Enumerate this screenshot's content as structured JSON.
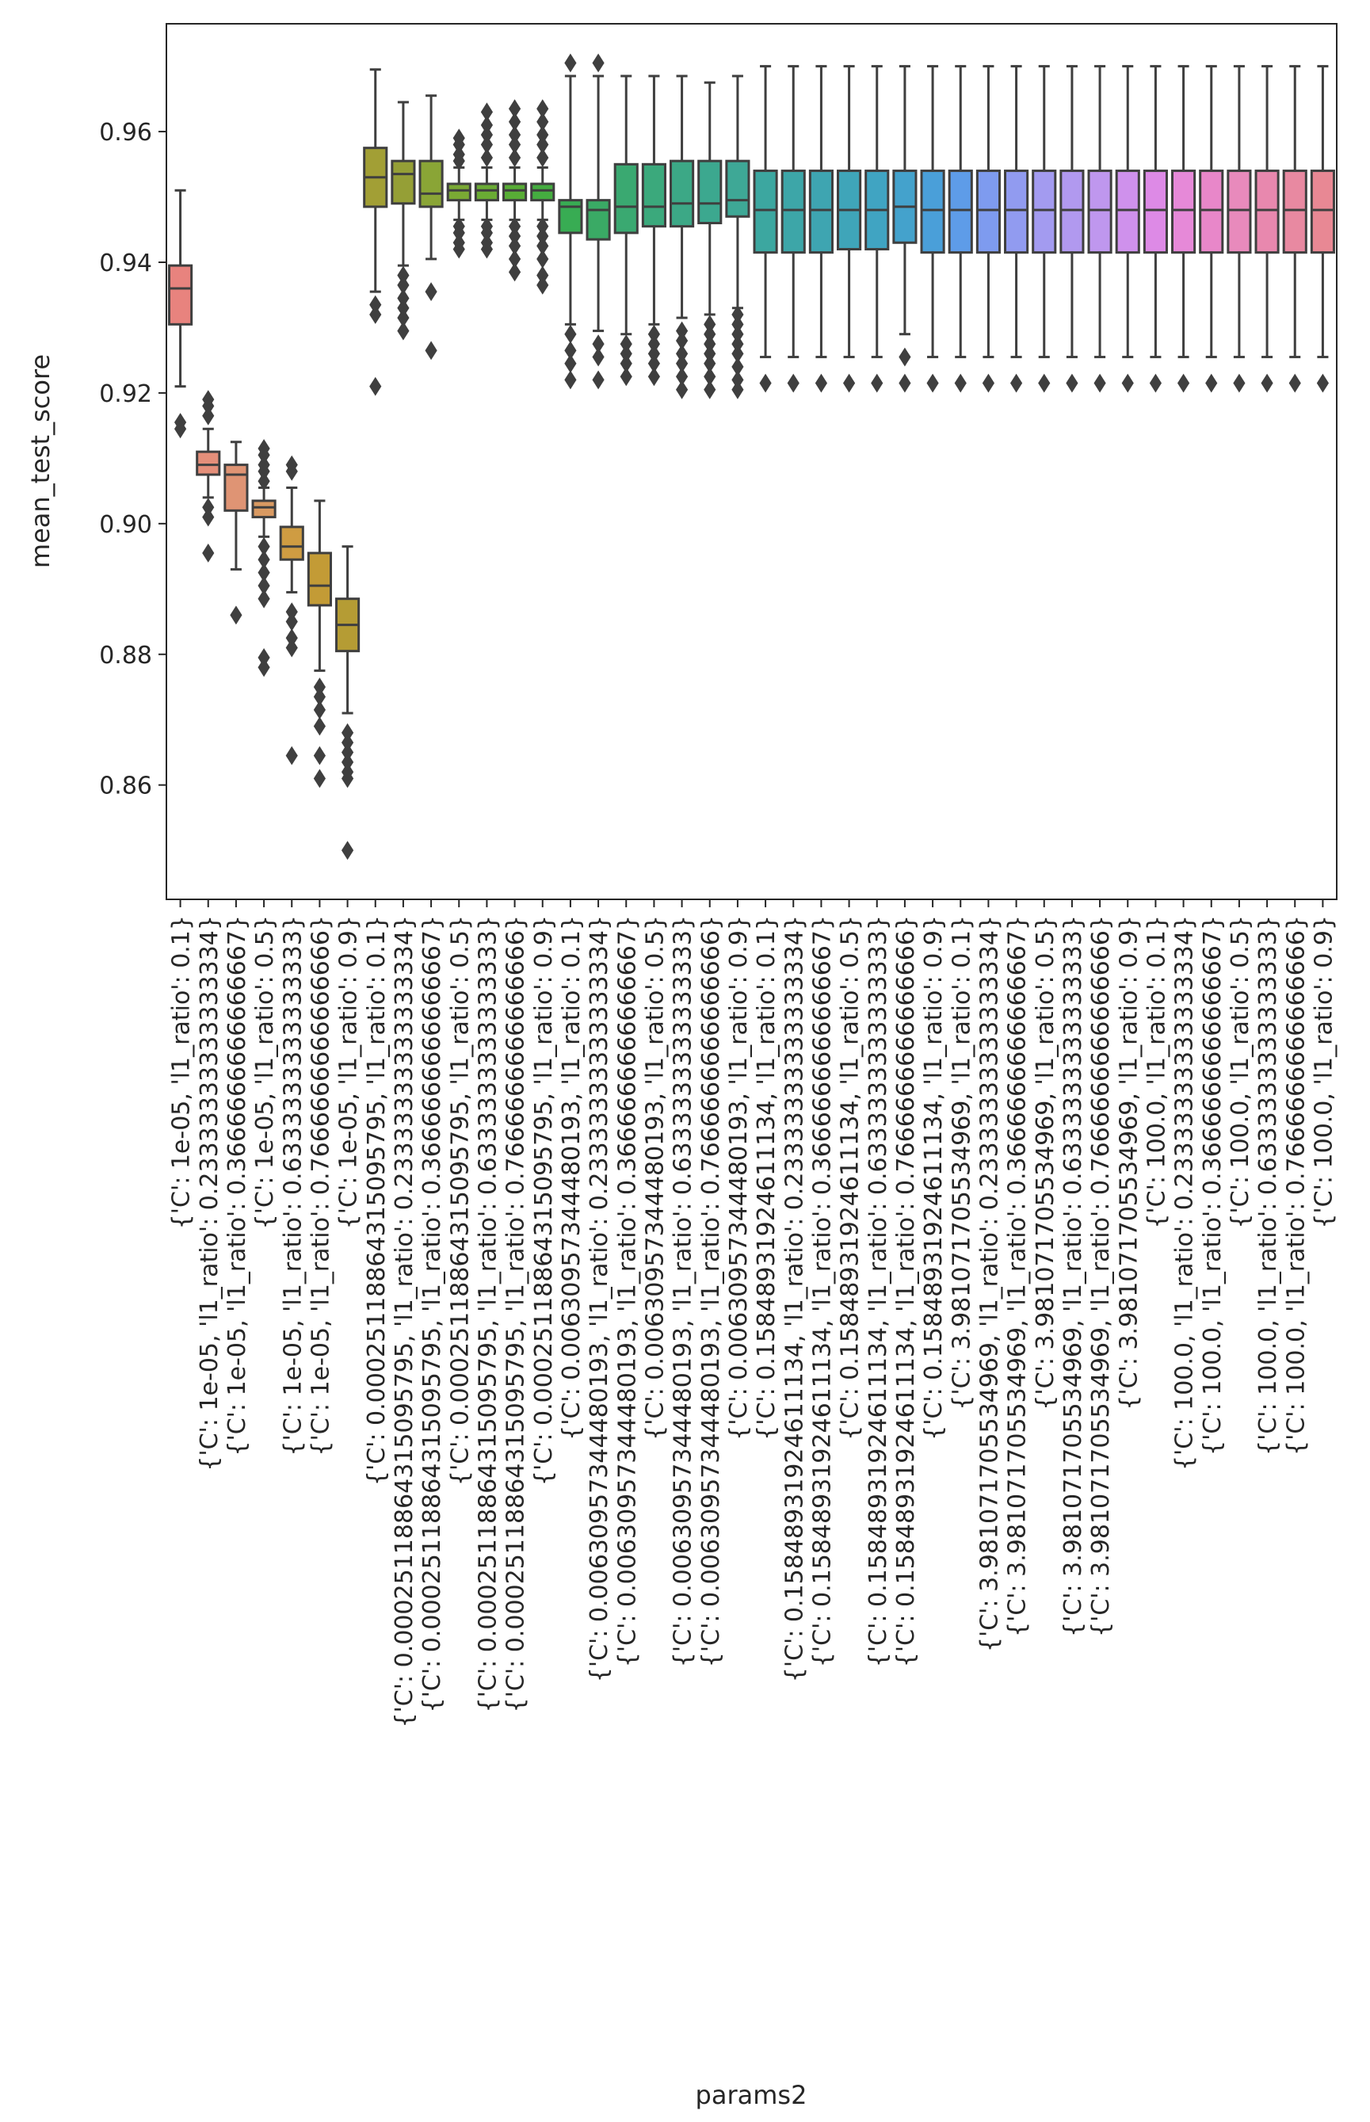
{
  "chart_data": {
    "type": "box",
    "xlabel": "params2",
    "ylabel": "mean_test_score",
    "ylim": [
      0.8425,
      0.9765
    ],
    "yticks": [
      0.86,
      0.88,
      0.9,
      0.92,
      0.94,
      0.96
    ],
    "ytick_labels": [
      "0.86",
      "0.88",
      "0.90",
      "0.92",
      "0.94",
      "0.96"
    ],
    "grid": false,
    "legend": "none",
    "categories": [
      "{'C': 1e-05, 'l1_ratio': 0.1}",
      "{'C': 1e-05, 'l1_ratio': 0.23333333333333334}",
      "{'C': 1e-05, 'l1_ratio': 0.3666666666666667}",
      "{'C': 1e-05, 'l1_ratio': 0.5}",
      "{'C': 1e-05, 'l1_ratio': 0.6333333333333333}",
      "{'C': 1e-05, 'l1_ratio': 0.7666666666666666}",
      "{'C': 1e-05, 'l1_ratio': 0.9}",
      "{'C': 0.00025118864315095795, 'l1_ratio': 0.1}",
      "{'C': 0.00025118864315095795, 'l1_ratio': 0.23333333333333334}",
      "{'C': 0.00025118864315095795, 'l1_ratio': 0.3666666666666667}",
      "{'C': 0.00025118864315095795, 'l1_ratio': 0.5}",
      "{'C': 0.00025118864315095795, 'l1_ratio': 0.6333333333333333}",
      "{'C': 0.00025118864315095795, 'l1_ratio': 0.7666666666666666}",
      "{'C': 0.00025118864315095795, 'l1_ratio': 0.9}",
      "{'C': 0.00630957344480193, 'l1_ratio': 0.1}",
      "{'C': 0.00630957344480193, 'l1_ratio': 0.23333333333333334}",
      "{'C': 0.00630957344480193, 'l1_ratio': 0.3666666666666667}",
      "{'C': 0.00630957344480193, 'l1_ratio': 0.5}",
      "{'C': 0.00630957344480193, 'l1_ratio': 0.6333333333333333}",
      "{'C': 0.00630957344480193, 'l1_ratio': 0.7666666666666666}",
      "{'C': 0.00630957344480193, 'l1_ratio': 0.9}",
      "{'C': 0.15848931924611134, 'l1_ratio': 0.1}",
      "{'C': 0.15848931924611134, 'l1_ratio': 0.23333333333333334}",
      "{'C': 0.15848931924611134, 'l1_ratio': 0.3666666666666667}",
      "{'C': 0.15848931924611134, 'l1_ratio': 0.5}",
      "{'C': 0.15848931924611134, 'l1_ratio': 0.6333333333333333}",
      "{'C': 0.15848931924611134, 'l1_ratio': 0.7666666666666666}",
      "{'C': 0.15848931924611134, 'l1_ratio': 0.9}",
      "{'C': 3.981071705534969, 'l1_ratio': 0.1}",
      "{'C': 3.981071705534969, 'l1_ratio': 0.23333333333333334}",
      "{'C': 3.981071705534969, 'l1_ratio': 0.3666666666666667}",
      "{'C': 3.981071705534969, 'l1_ratio': 0.5}",
      "{'C': 3.981071705534969, 'l1_ratio': 0.6333333333333333}",
      "{'C': 3.981071705534969, 'l1_ratio': 0.7666666666666666}",
      "{'C': 3.981071705534969, 'l1_ratio': 0.9}",
      "{'C': 100.0, 'l1_ratio': 0.1}",
      "{'C': 100.0, 'l1_ratio': 0.23333333333333334}",
      "{'C': 100.0, 'l1_ratio': 0.3666666666666667}",
      "{'C': 100.0, 'l1_ratio': 0.5}",
      "{'C': 100.0, 'l1_ratio': 0.6333333333333333}",
      "{'C': 100.0, 'l1_ratio': 0.7666666666666666}",
      "{'C': 100.0, 'l1_ratio': 0.9}"
    ],
    "boxes": [
      {
        "whislo": 0.921,
        "q1": 0.9305,
        "med": 0.936,
        "q3": 0.9395,
        "whishi": 0.951,
        "fliers": [
          0.9155,
          0.9145
        ]
      },
      {
        "whislo": 0.904,
        "q1": 0.9075,
        "med": 0.909,
        "q3": 0.911,
        "whishi": 0.9145,
        "fliers": [
          0.9165,
          0.918,
          0.919,
          0.9025,
          0.901,
          0.8955
        ]
      },
      {
        "whislo": 0.893,
        "q1": 0.902,
        "med": 0.9075,
        "q3": 0.909,
        "whishi": 0.9125,
        "fliers": [
          0.886
        ]
      },
      {
        "whislo": 0.898,
        "q1": 0.901,
        "med": 0.9025,
        "q3": 0.9035,
        "whishi": 0.9055,
        "fliers": [
          0.9065,
          0.908,
          0.909,
          0.9105,
          0.9115,
          0.8965,
          0.8945,
          0.8925,
          0.8905,
          0.8885,
          0.8795,
          0.878
        ]
      },
      {
        "whislo": 0.8895,
        "q1": 0.8945,
        "med": 0.8965,
        "q3": 0.8995,
        "whishi": 0.9055,
        "fliers": [
          0.908,
          0.909,
          0.8865,
          0.885,
          0.8825,
          0.881,
          0.8645
        ]
      },
      {
        "whislo": 0.8775,
        "q1": 0.8875,
        "med": 0.8905,
        "q3": 0.8955,
        "whishi": 0.9035,
        "fliers": [
          0.875,
          0.8735,
          0.8715,
          0.869,
          0.8645,
          0.861
        ]
      },
      {
        "whislo": 0.871,
        "q1": 0.8805,
        "med": 0.8845,
        "q3": 0.8885,
        "whishi": 0.8965,
        "fliers": [
          0.868,
          0.8665,
          0.865,
          0.8635,
          0.862,
          0.861,
          0.85
        ]
      },
      {
        "whislo": 0.9355,
        "q1": 0.9485,
        "med": 0.953,
        "q3": 0.9575,
        "whishi": 0.9695,
        "fliers": [
          0.9335,
          0.932,
          0.921
        ]
      },
      {
        "whislo": 0.9395,
        "q1": 0.949,
        "med": 0.9535,
        "q3": 0.9555,
        "whishi": 0.9645,
        "fliers": [
          0.938,
          0.9365,
          0.9345,
          0.933,
          0.9315,
          0.9295
        ]
      },
      {
        "whislo": 0.9405,
        "q1": 0.9485,
        "med": 0.9505,
        "q3": 0.9555,
        "whishi": 0.9655,
        "fliers": [
          0.9355,
          0.9265
        ]
      },
      {
        "whislo": 0.9465,
        "q1": 0.9495,
        "med": 0.951,
        "q3": 0.952,
        "whishi": 0.9545,
        "fliers": [
          0.959,
          0.958,
          0.9565,
          0.9555,
          0.9455,
          0.9445,
          0.943,
          0.942
        ]
      },
      {
        "whislo": 0.9465,
        "q1": 0.9495,
        "med": 0.951,
        "q3": 0.952,
        "whishi": 0.9545,
        "fliers": [
          0.963,
          0.961,
          0.9595,
          0.958,
          0.956,
          0.9455,
          0.9445,
          0.943,
          0.942
        ]
      },
      {
        "whislo": 0.9465,
        "q1": 0.9495,
        "med": 0.951,
        "q3": 0.952,
        "whishi": 0.9545,
        "fliers": [
          0.9635,
          0.9615,
          0.9595,
          0.958,
          0.956,
          0.9455,
          0.944,
          0.9425,
          0.9405,
          0.9385
        ]
      },
      {
        "whislo": 0.9465,
        "q1": 0.9495,
        "med": 0.951,
        "q3": 0.952,
        "whishi": 0.9545,
        "fliers": [
          0.9635,
          0.9615,
          0.9595,
          0.958,
          0.956,
          0.9455,
          0.944,
          0.9425,
          0.9405,
          0.938,
          0.9365
        ]
      },
      {
        "whislo": 0.9305,
        "q1": 0.9445,
        "med": 0.9485,
        "q3": 0.9495,
        "whishi": 0.9685,
        "fliers": [
          0.9705,
          0.929,
          0.9265,
          0.9245,
          0.922
        ]
      },
      {
        "whislo": 0.9295,
        "q1": 0.9435,
        "med": 0.948,
        "q3": 0.9495,
        "whishi": 0.9685,
        "fliers": [
          0.9705,
          0.9275,
          0.9255,
          0.922
        ]
      },
      {
        "whislo": 0.929,
        "q1": 0.9445,
        "med": 0.9485,
        "q3": 0.955,
        "whishi": 0.9685,
        "fliers": [
          0.9275,
          0.926,
          0.9245,
          0.9225
        ]
      },
      {
        "whislo": 0.9305,
        "q1": 0.9455,
        "med": 0.9485,
        "q3": 0.955,
        "whishi": 0.9685,
        "fliers": [
          0.929,
          0.9275,
          0.926,
          0.9245,
          0.9225
        ]
      },
      {
        "whislo": 0.9315,
        "q1": 0.9455,
        "med": 0.949,
        "q3": 0.9555,
        "whishi": 0.9685,
        "fliers": [
          0.9295,
          0.928,
          0.926,
          0.9245,
          0.9225,
          0.9205
        ]
      },
      {
        "whislo": 0.932,
        "q1": 0.946,
        "med": 0.949,
        "q3": 0.9555,
        "whishi": 0.9675,
        "fliers": [
          0.9305,
          0.929,
          0.9275,
          0.926,
          0.9245,
          0.9225,
          0.9205
        ]
      },
      {
        "whislo": 0.933,
        "q1": 0.947,
        "med": 0.9495,
        "q3": 0.9555,
        "whishi": 0.9685,
        "fliers": [
          0.932,
          0.9305,
          0.929,
          0.9275,
          0.926,
          0.924,
          0.922,
          0.9205
        ]
      },
      {
        "whislo": 0.9255,
        "q1": 0.9415,
        "med": 0.948,
        "q3": 0.954,
        "whishi": 0.97,
        "fliers": [
          0.9215
        ]
      },
      {
        "whislo": 0.9255,
        "q1": 0.9415,
        "med": 0.948,
        "q3": 0.954,
        "whishi": 0.97,
        "fliers": [
          0.9215
        ]
      },
      {
        "whislo": 0.9255,
        "q1": 0.9415,
        "med": 0.948,
        "q3": 0.954,
        "whishi": 0.97,
        "fliers": [
          0.9215
        ]
      },
      {
        "whislo": 0.9255,
        "q1": 0.942,
        "med": 0.948,
        "q3": 0.954,
        "whishi": 0.97,
        "fliers": [
          0.9215
        ]
      },
      {
        "whislo": 0.9255,
        "q1": 0.942,
        "med": 0.948,
        "q3": 0.954,
        "whishi": 0.97,
        "fliers": [
          0.9215
        ]
      },
      {
        "whislo": 0.929,
        "q1": 0.943,
        "med": 0.9485,
        "q3": 0.954,
        "whishi": 0.97,
        "fliers": [
          0.9255,
          0.9215
        ]
      },
      {
        "whislo": 0.9255,
        "q1": 0.9415,
        "med": 0.948,
        "q3": 0.954,
        "whishi": 0.97,
        "fliers": [
          0.9215
        ]
      },
      {
        "whislo": 0.9255,
        "q1": 0.9415,
        "med": 0.948,
        "q3": 0.954,
        "whishi": 0.97,
        "fliers": [
          0.9215
        ]
      },
      {
        "whislo": 0.9255,
        "q1": 0.9415,
        "med": 0.948,
        "q3": 0.954,
        "whishi": 0.97,
        "fliers": [
          0.9215
        ]
      },
      {
        "whislo": 0.9255,
        "q1": 0.9415,
        "med": 0.948,
        "q3": 0.954,
        "whishi": 0.97,
        "fliers": [
          0.9215
        ]
      },
      {
        "whislo": 0.9255,
        "q1": 0.9415,
        "med": 0.948,
        "q3": 0.954,
        "whishi": 0.97,
        "fliers": [
          0.9215
        ]
      },
      {
        "whislo": 0.9255,
        "q1": 0.9415,
        "med": 0.948,
        "q3": 0.954,
        "whishi": 0.97,
        "fliers": [
          0.9215
        ]
      },
      {
        "whislo": 0.9255,
        "q1": 0.9415,
        "med": 0.948,
        "q3": 0.954,
        "whishi": 0.97,
        "fliers": [
          0.9215
        ]
      },
      {
        "whislo": 0.9255,
        "q1": 0.9415,
        "med": 0.948,
        "q3": 0.954,
        "whishi": 0.97,
        "fliers": [
          0.9215
        ]
      },
      {
        "whislo": 0.9255,
        "q1": 0.9415,
        "med": 0.948,
        "q3": 0.954,
        "whishi": 0.97,
        "fliers": [
          0.9215
        ]
      },
      {
        "whislo": 0.9255,
        "q1": 0.9415,
        "med": 0.948,
        "q3": 0.954,
        "whishi": 0.97,
        "fliers": [
          0.9215
        ]
      },
      {
        "whislo": 0.9255,
        "q1": 0.9415,
        "med": 0.948,
        "q3": 0.954,
        "whishi": 0.97,
        "fliers": [
          0.9215
        ]
      },
      {
        "whislo": 0.9255,
        "q1": 0.9415,
        "med": 0.948,
        "q3": 0.954,
        "whishi": 0.97,
        "fliers": [
          0.9215
        ]
      },
      {
        "whislo": 0.9255,
        "q1": 0.9415,
        "med": 0.948,
        "q3": 0.954,
        "whishi": 0.97,
        "fliers": [
          0.9215
        ]
      },
      {
        "whislo": 0.9255,
        "q1": 0.9415,
        "med": 0.948,
        "q3": 0.954,
        "whishi": 0.97,
        "fliers": [
          0.9215
        ]
      },
      {
        "whislo": 0.9255,
        "q1": 0.9415,
        "med": 0.948,
        "q3": 0.954,
        "whishi": 0.97,
        "fliers": [
          0.9215
        ]
      }
    ],
    "colors": [
      "#e8837e",
      "#e58f7a",
      "#df9474",
      "#d99a62",
      "#cf9c42",
      "#c39b36",
      "#b59c34",
      "#a29f35",
      "#959f36",
      "#8aa536",
      "#7aa934",
      "#6aab34",
      "#58ad36",
      "#45ad40",
      "#38ac53",
      "#3aaa65",
      "#3aa971",
      "#3ba97c",
      "#3ca886",
      "#3ca88f",
      "#3ea896",
      "#3ca7a0",
      "#3da6a8",
      "#3ea5b1",
      "#3fa5b9",
      "#40a4c2",
      "#44a2cc",
      "#4a9fd9",
      "#5e9ce8",
      "#7e9bef",
      "#919bf0",
      "#a39bf0",
      "#b199ef",
      "#bf97ee",
      "#cf91ec",
      "#dd8ae6",
      "#e689d8",
      "#e887c9",
      "#e88abc",
      "#e888ae",
      "#e889a1",
      "#e88894"
    ]
  }
}
